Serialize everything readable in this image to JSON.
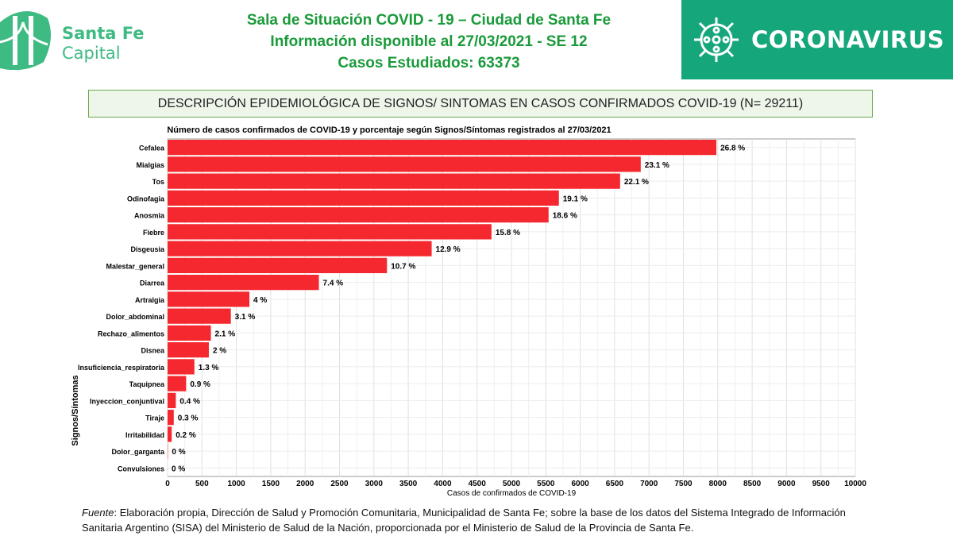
{
  "logo": {
    "name": "Santa Fe",
    "sub": "Capital"
  },
  "header": {
    "line1": "Sala de Situación COVID - 19 – Ciudad de Santa Fe",
    "line2": "Información disponible al 27/03/2021 - SE 12",
    "line3": "Casos Estudiados: 63373"
  },
  "banner": {
    "label": "CORONAVIRUS"
  },
  "section_title": "DESCRIPCIÓN EPIDEMIOLÓGICA DE SIGNOS/ SINTOMAS EN CASOS CONFIRMADOS COVID-19 (N= 29211)",
  "chart_data": {
    "type": "bar",
    "orientation": "horizontal",
    "title": "Número de casos confirmados de COVID-19 y porcentaje según Signos/Síntomas registrados al 27/03/2021",
    "xlabel": "Casos de confirmados de COVID-19",
    "ylabel": "Signos/Síntomas",
    "xlim": [
      0,
      10000
    ],
    "xticks": [
      0,
      500,
      1000,
      1500,
      2000,
      2500,
      3000,
      3500,
      4000,
      4500,
      5000,
      5500,
      6000,
      6500,
      7000,
      7500,
      8000,
      8500,
      9000,
      9500,
      10000
    ],
    "grid": true,
    "color": "#f5282f",
    "categories": [
      "Cefalea",
      "Mialgias",
      "Tos",
      "Odinofagia",
      "Anosmia",
      "Fiebre",
      "Disgeusia",
      "Malestar_general",
      "Diarrea",
      "Artralgia",
      "Dolor_abdominal",
      "Rechazo_alimentos",
      "Disnea",
      "Insuficiencia_respiratoria",
      "Taquipnea",
      "Inyeccion_conjuntival",
      "Tiraje",
      "Irritabilidad",
      "Dolor_garganta",
      "Convulsiones"
    ],
    "values": [
      7980,
      6880,
      6580,
      5690,
      5540,
      4710,
      3840,
      3190,
      2200,
      1190,
      920,
      630,
      600,
      390,
      270,
      120,
      90,
      60,
      5,
      0
    ],
    "labels": [
      "26.8 %",
      "23.1 %",
      "22.1 %",
      "19.1 %",
      "18.6 %",
      "15.8 %",
      "12.9 %",
      "10.7 %",
      "7.4 %",
      "4 %",
      "3.1 %",
      "2.1 %",
      "2 %",
      "1.3 %",
      "0.9 %",
      "0.4 %",
      "0.3 %",
      "0.2 %",
      "0 %",
      "0 %"
    ]
  },
  "footer": {
    "source_label": "Fuente",
    "text": ": Elaboración propia, Dirección de Salud y Promoción Comunitaria, Municipalidad de Santa Fe; sobre la base de los datos del Sistema Integrado de Información Sanitaria Argentino (SISA) del Ministerio de Salud de la Nación, proporcionada por el Ministerio de Salud de la Provincia de Santa Fe."
  }
}
